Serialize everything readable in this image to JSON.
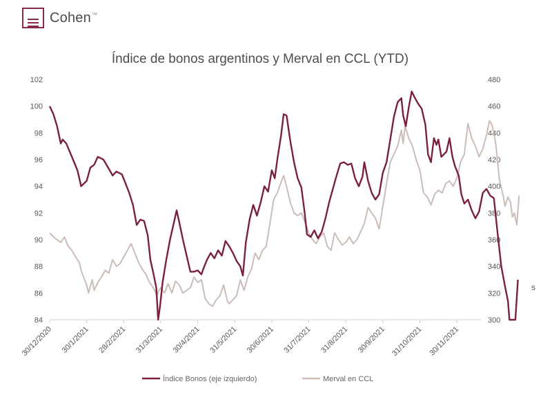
{
  "brand": {
    "name": "Cohen",
    "tm": "™",
    "color": "#8b2747"
  },
  "stray_text": "s",
  "chart_data": {
    "type": "line",
    "title": "Índice de bonos argentinos y Merval en CCL (YTD)",
    "x_ticks": [
      "30/12/2020",
      "30/1/2021",
      "28/2/2021",
      "31/3/2021",
      "30/4/2021",
      "31/5/2021",
      "30/6/2021",
      "31/7/2021",
      "31/8/2021",
      "30/9/2021",
      "31/10/2021",
      "30/11/2021"
    ],
    "y_left": {
      "ticks": [
        84,
        86,
        88,
        90,
        92,
        94,
        96,
        98,
        100,
        102
      ],
      "range": [
        84,
        102
      ]
    },
    "y_right": {
      "ticks": [
        300,
        320,
        340,
        360,
        380,
        400,
        420,
        440,
        460,
        480
      ],
      "range": [
        300,
        480
      ]
    },
    "legend_position": "bottom",
    "series": [
      {
        "name": "Índice Bonos (eje izquierdo)",
        "axis": "left",
        "color": "#7b1f3e",
        "points": [
          [
            0,
            100
          ],
          [
            0.1,
            99.4
          ],
          [
            0.2,
            98.5
          ],
          [
            0.3,
            97.2
          ],
          [
            0.35,
            97.5
          ],
          [
            0.45,
            97.2
          ],
          [
            0.6,
            96.2
          ],
          [
            0.75,
            95.2
          ],
          [
            0.85,
            94.0
          ],
          [
            1.0,
            94.4
          ],
          [
            1.1,
            95.4
          ],
          [
            1.2,
            95.6
          ],
          [
            1.3,
            96.2
          ],
          [
            1.45,
            96.0
          ],
          [
            1.6,
            95.3
          ],
          [
            1.7,
            94.8
          ],
          [
            1.8,
            95.1
          ],
          [
            1.95,
            94.9
          ],
          [
            2.05,
            94.2
          ],
          [
            2.15,
            93.5
          ],
          [
            2.25,
            92.6
          ],
          [
            2.35,
            91.1
          ],
          [
            2.45,
            91.5
          ],
          [
            2.55,
            91.4
          ],
          [
            2.65,
            90.3
          ],
          [
            2.72,
            88.5
          ],
          [
            2.8,
            87.5
          ],
          [
            2.88,
            86.4
          ],
          [
            2.93,
            84.0
          ],
          [
            2.98,
            85.0
          ],
          [
            3.05,
            86.8
          ],
          [
            3.15,
            88.5
          ],
          [
            3.25,
            90.0
          ],
          [
            3.35,
            91.2
          ],
          [
            3.43,
            92.2
          ],
          [
            3.5,
            91.3
          ],
          [
            3.6,
            90.0
          ],
          [
            3.7,
            88.8
          ],
          [
            3.8,
            87.6
          ],
          [
            3.9,
            87.6
          ],
          [
            4.0,
            87.7
          ],
          [
            4.1,
            87.4
          ],
          [
            4.15,
            87.8
          ],
          [
            4.25,
            88.5
          ],
          [
            4.35,
            89.0
          ],
          [
            4.45,
            88.6
          ],
          [
            4.55,
            89.2
          ],
          [
            4.65,
            88.8
          ],
          [
            4.75,
            89.9
          ],
          [
            4.85,
            89.5
          ],
          [
            4.95,
            89.0
          ],
          [
            5.05,
            88.4
          ],
          [
            5.15,
            88.0
          ],
          [
            5.22,
            87.3
          ],
          [
            5.3,
            89.8
          ],
          [
            5.4,
            91.5
          ],
          [
            5.5,
            92.6
          ],
          [
            5.6,
            91.8
          ],
          [
            5.7,
            92.8
          ],
          [
            5.8,
            94.0
          ],
          [
            5.9,
            93.6
          ],
          [
            6.0,
            95.2
          ],
          [
            6.08,
            94.6
          ],
          [
            6.15,
            96.0
          ],
          [
            6.25,
            97.8
          ],
          [
            6.32,
            99.4
          ],
          [
            6.4,
            99.3
          ],
          [
            6.5,
            97.4
          ],
          [
            6.6,
            95.8
          ],
          [
            6.7,
            94.6
          ],
          [
            6.8,
            93.9
          ],
          [
            6.88,
            92.2
          ],
          [
            6.95,
            90.4
          ],
          [
            7.05,
            90.2
          ],
          [
            7.15,
            90.7
          ],
          [
            7.25,
            90.1
          ],
          [
            7.35,
            90.6
          ],
          [
            7.45,
            91.6
          ],
          [
            7.55,
            92.8
          ],
          [
            7.65,
            93.8
          ],
          [
            7.75,
            94.8
          ],
          [
            7.85,
            95.7
          ],
          [
            7.95,
            95.8
          ],
          [
            8.05,
            95.6
          ],
          [
            8.15,
            95.7
          ],
          [
            8.25,
            94.6
          ],
          [
            8.35,
            94.0
          ],
          [
            8.45,
            94.7
          ],
          [
            8.5,
            95.8
          ],
          [
            8.6,
            94.4
          ],
          [
            8.7,
            93.5
          ],
          [
            8.8,
            93.0
          ],
          [
            8.9,
            93.4
          ],
          [
            9.0,
            95.0
          ],
          [
            9.1,
            95.8
          ],
          [
            9.2,
            97.5
          ],
          [
            9.3,
            99.2
          ],
          [
            9.4,
            100.3
          ],
          [
            9.5,
            100.6
          ],
          [
            9.55,
            99.3
          ],
          [
            9.62,
            98.5
          ],
          [
            9.7,
            99.9
          ],
          [
            9.78,
            101.1
          ],
          [
            9.85,
            100.7
          ],
          [
            9.95,
            100.2
          ],
          [
            10.05,
            99.8
          ],
          [
            10.15,
            98.6
          ],
          [
            10.22,
            96.4
          ],
          [
            10.3,
            95.8
          ],
          [
            10.38,
            97.6
          ],
          [
            10.45,
            97.1
          ],
          [
            10.5,
            97.5
          ],
          [
            10.58,
            96.2
          ],
          [
            10.65,
            96.4
          ],
          [
            10.72,
            96.6
          ],
          [
            10.8,
            97.6
          ],
          [
            10.88,
            96.2
          ],
          [
            10.95,
            95.5
          ],
          [
            11.05,
            94.8
          ],
          [
            11.12,
            93.4
          ],
          [
            11.2,
            92.7
          ],
          [
            11.3,
            93.0
          ],
          [
            11.4,
            92.2
          ],
          [
            11.5,
            91.6
          ],
          [
            11.6,
            92.1
          ],
          [
            11.7,
            93.5
          ],
          [
            11.8,
            93.8
          ],
          [
            11.9,
            93.3
          ],
          [
            12.0,
            93.1
          ],
          [
            12.1,
            90.5
          ],
          [
            12.2,
            88.0
          ],
          [
            12.3,
            86.5
          ],
          [
            12.38,
            85.4
          ],
          [
            12.42,
            84.0
          ],
          [
            12.5,
            84.0
          ],
          [
            12.58,
            84.0
          ],
          [
            12.65,
            87.0
          ]
        ]
      },
      {
        "name": "Merval en CCL",
        "axis": "right",
        "color": "#cbbcb8",
        "points": [
          [
            0,
            365
          ],
          [
            0.1,
            362
          ],
          [
            0.2,
            360
          ],
          [
            0.3,
            358
          ],
          [
            0.4,
            362
          ],
          [
            0.5,
            355
          ],
          [
            0.6,
            352
          ],
          [
            0.7,
            347
          ],
          [
            0.8,
            343
          ],
          [
            0.85,
            337
          ],
          [
            0.9,
            333
          ],
          [
            1.0,
            326
          ],
          [
            1.05,
            320
          ],
          [
            1.1,
            325
          ],
          [
            1.15,
            330
          ],
          [
            1.2,
            322
          ],
          [
            1.3,
            328
          ],
          [
            1.4,
            332
          ],
          [
            1.5,
            337
          ],
          [
            1.6,
            335
          ],
          [
            1.7,
            345
          ],
          [
            1.8,
            340
          ],
          [
            1.9,
            342
          ],
          [
            2.0,
            347
          ],
          [
            2.1,
            352
          ],
          [
            2.2,
            357
          ],
          [
            2.3,
            350
          ],
          [
            2.4,
            343
          ],
          [
            2.5,
            338
          ],
          [
            2.6,
            334
          ],
          [
            2.7,
            328
          ],
          [
            2.8,
            324
          ],
          [
            2.9,
            318
          ],
          [
            2.95,
            322
          ],
          [
            3.0,
            324
          ],
          [
            3.1,
            320
          ],
          [
            3.2,
            327
          ],
          [
            3.3,
            320
          ],
          [
            3.4,
            329
          ],
          [
            3.5,
            326
          ],
          [
            3.6,
            320
          ],
          [
            3.7,
            322
          ],
          [
            3.8,
            324
          ],
          [
            3.9,
            332
          ],
          [
            4.0,
            328
          ],
          [
            4.1,
            330
          ],
          [
            4.2,
            316
          ],
          [
            4.3,
            312
          ],
          [
            4.4,
            310
          ],
          [
            4.5,
            315
          ],
          [
            4.6,
            318
          ],
          [
            4.7,
            326
          ],
          [
            4.8,
            314
          ],
          [
            4.85,
            312
          ],
          [
            4.95,
            315
          ],
          [
            5.05,
            318
          ],
          [
            5.15,
            330
          ],
          [
            5.25,
            322
          ],
          [
            5.35,
            332
          ],
          [
            5.45,
            338
          ],
          [
            5.55,
            350
          ],
          [
            5.65,
            345
          ],
          [
            5.75,
            352
          ],
          [
            5.85,
            355
          ],
          [
            5.95,
            372
          ],
          [
            6.05,
            390
          ],
          [
            6.15,
            395
          ],
          [
            6.25,
            403
          ],
          [
            6.32,
            408
          ],
          [
            6.4,
            400
          ],
          [
            6.5,
            388
          ],
          [
            6.6,
            380
          ],
          [
            6.7,
            378
          ],
          [
            6.8,
            380
          ],
          [
            6.9,
            373
          ],
          [
            7.0,
            365
          ],
          [
            7.1,
            360
          ],
          [
            7.2,
            357
          ],
          [
            7.3,
            362
          ],
          [
            7.4,
            365
          ],
          [
            7.5,
            355
          ],
          [
            7.6,
            352
          ],
          [
            7.7,
            365
          ],
          [
            7.8,
            360
          ],
          [
            7.9,
            356
          ],
          [
            8.0,
            358
          ],
          [
            8.1,
            362
          ],
          [
            8.2,
            357
          ],
          [
            8.3,
            360
          ],
          [
            8.4,
            366
          ],
          [
            8.5,
            372
          ],
          [
            8.6,
            384
          ],
          [
            8.7,
            380
          ],
          [
            8.8,
            376
          ],
          [
            8.9,
            368
          ],
          [
            9.0,
            385
          ],
          [
            9.1,
            402
          ],
          [
            9.2,
            418
          ],
          [
            9.3,
            424
          ],
          [
            9.4,
            430
          ],
          [
            9.5,
            442
          ],
          [
            9.55,
            432
          ],
          [
            9.6,
            445
          ],
          [
            9.7,
            436
          ],
          [
            9.8,
            430
          ],
          [
            9.9,
            420
          ],
          [
            10.0,
            412
          ],
          [
            10.1,
            395
          ],
          [
            10.2,
            392
          ],
          [
            10.3,
            386
          ],
          [
            10.4,
            394
          ],
          [
            10.5,
            397
          ],
          [
            10.6,
            395
          ],
          [
            10.7,
            402
          ],
          [
            10.8,
            404
          ],
          [
            10.9,
            400
          ],
          [
            11.0,
            406
          ],
          [
            11.1,
            418
          ],
          [
            11.2,
            424
          ],
          [
            11.3,
            447
          ],
          [
            11.4,
            436
          ],
          [
            11.5,
            430
          ],
          [
            11.6,
            422
          ],
          [
            11.7,
            428
          ],
          [
            11.8,
            438
          ],
          [
            11.88,
            449
          ],
          [
            11.95,
            446
          ],
          [
            12.05,
            432
          ],
          [
            12.15,
            405
          ],
          [
            12.25,
            393
          ],
          [
            12.3,
            385
          ],
          [
            12.38,
            392
          ],
          [
            12.45,
            388
          ],
          [
            12.5,
            377
          ],
          [
            12.55,
            380
          ],
          [
            12.62,
            371
          ],
          [
            12.68,
            393
          ]
        ]
      }
    ]
  }
}
